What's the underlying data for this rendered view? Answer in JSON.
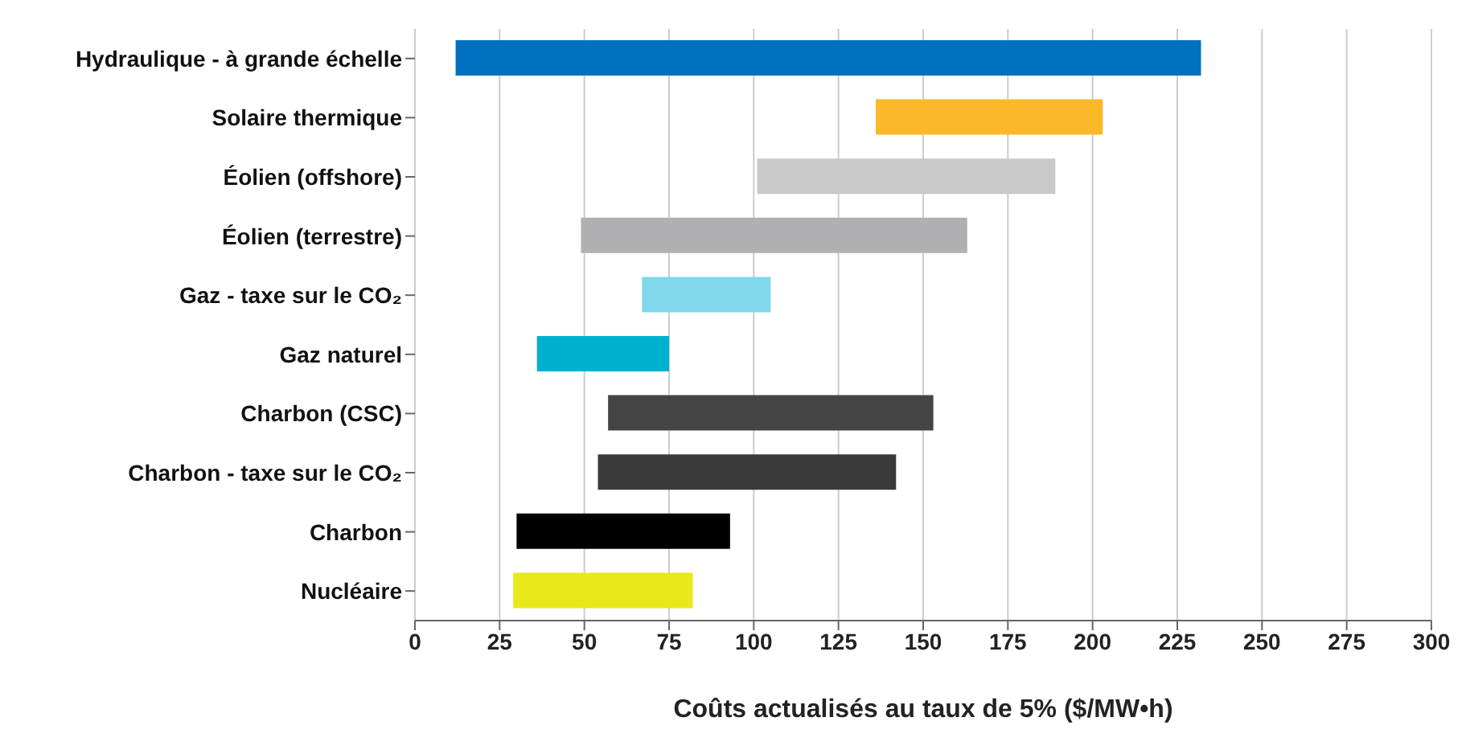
{
  "chart_data": {
    "type": "bar",
    "orientation": "horizontal",
    "xlabel": "Coûts actualisés au taux de 5% ($/MW•h)",
    "categories": [
      "Hydraulique - à grande échelle",
      "Solaire thermique",
      "Éolien (offshore)",
      "Éolien (terrestre)",
      "Gaz - taxe sur le CO₂",
      "Gaz naturel",
      "Charbon (CSC)",
      "Charbon - taxe sur le CO₂",
      "Charbon",
      "Nucléaire"
    ],
    "base": [
      12,
      136,
      101,
      49,
      67,
      36,
      57,
      54,
      30,
      29
    ],
    "values": [
      220,
      67,
      88,
      114,
      38,
      39,
      96,
      88,
      63,
      53
    ],
    "colors": [
      "#0070c0",
      "#fbb829",
      "#c8c8c8",
      "#b0b0b2",
      "#80d8ec",
      "#00b0d0",
      "#444444",
      "#3a3a3a",
      "#000000",
      "#e8e81a"
    ],
    "xlim": [
      0,
      300
    ],
    "xticks": [
      0,
      25,
      50,
      75,
      100,
      125,
      150,
      175,
      200,
      225,
      250,
      275,
      300
    ],
    "grid": "x",
    "legend": false
  }
}
